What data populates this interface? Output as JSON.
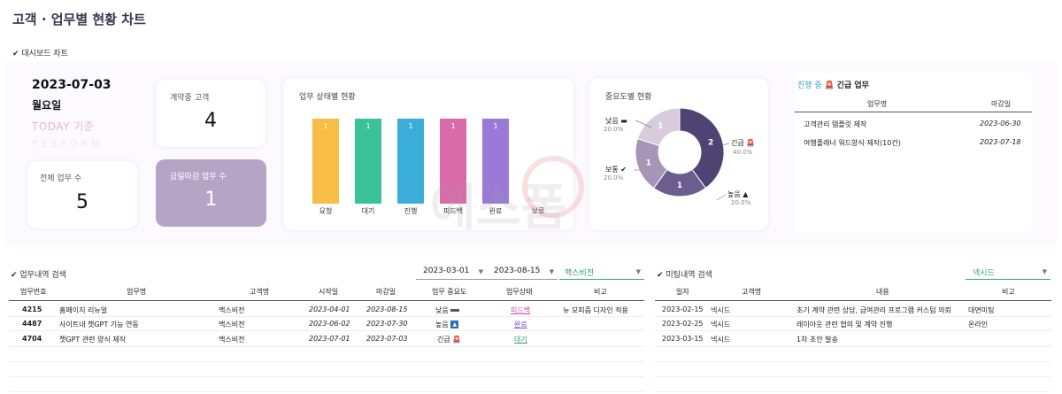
{
  "title": "고객 · 업무별 현황 차트",
  "dashboard_section": "✔ 대시보드 차트",
  "today": {
    "date": "2023-07-03",
    "weekday": "월요일",
    "label": "TODAY 기준",
    "brand": "YESFORM"
  },
  "cards": {
    "contract_customers": {
      "label": "계약중 고객",
      "value": "4"
    },
    "total_tasks": {
      "label": "전체 업무 수",
      "value": "5"
    },
    "urgent_tasks": {
      "label": "금일마감 업무 수",
      "value": "1"
    }
  },
  "status_chart": {
    "title": "업무 상태별 현황",
    "chart_data": {
      "type": "bar",
      "categories": [
        "요청",
        "대기",
        "진행",
        "피드백",
        "완료",
        "보류"
      ],
      "values": [
        1,
        1,
        1,
        1,
        1,
        0
      ],
      "colors": [
        "#f7bd45",
        "#39c19a",
        "#3aaed9",
        "#d96ba8",
        "#9a7ad6",
        "#cccccc"
      ],
      "ylim": [
        0,
        1
      ]
    }
  },
  "priority_chart": {
    "title": "중요도별 현황",
    "chart_data": {
      "type": "pie",
      "labels": [
        "긴급",
        "높음",
        "보통",
        "낮음"
      ],
      "values": [
        2,
        1,
        1,
        1
      ],
      "percents": [
        "40.0%",
        "20.0%",
        "20.0%",
        "20.0%"
      ],
      "colors": [
        "#4f4373",
        "#6b5e8e",
        "#a795b8",
        "#d7cbdd"
      ]
    }
  },
  "urgent_panel": {
    "title_prefix": "진행 중",
    "title_suffix": "긴급 업무",
    "headers": [
      "업무명",
      "마감일"
    ],
    "rows": [
      {
        "name": "고객관리 템플릿 제작",
        "due": "2023-06-30"
      },
      {
        "name": "여행플래너 워드양식 제작(10건)",
        "due": "2023-07-18"
      }
    ]
  },
  "task_search": {
    "section": "✔ 업무내역 검색",
    "start_date": "2023-03-01",
    "end_date": "2023-08-15",
    "customer": "맥스비전",
    "headers": [
      "업무번호",
      "업무명",
      "고객명",
      "시작일",
      "마감일",
      "업무 중요도",
      "업무상태",
      "비고"
    ],
    "rows": [
      {
        "no": "4215",
        "name": "홈페이지 리뉴얼",
        "customer": "맥스비전",
        "start": "2023-04-01",
        "due": "2023-08-15",
        "priority": "낮음",
        "status": "피드백",
        "note": "뉴 모피즘 디자인 적용"
      },
      {
        "no": "4487",
        "name": "사이트내 챗GPT 기능 연동",
        "customer": "맥스비전",
        "start": "2023-06-02",
        "due": "2023-07-30",
        "priority": "높음",
        "status": "완료",
        "note": ""
      },
      {
        "no": "4704",
        "name": "챗GPT 관련 양식 제작",
        "customer": "맥스비전",
        "start": "2023-07-01",
        "due": "2023-07-03",
        "priority": "긴급",
        "status": "대기",
        "note": ""
      }
    ]
  },
  "meeting_search": {
    "section": "✔ 미팅내역 검색",
    "customer": "넥시드",
    "headers": [
      "일자",
      "고객명",
      "내용",
      "비고"
    ],
    "rows": [
      {
        "date": "2023-02-15",
        "customer": "넥시드",
        "content": "초기 계약 관련 상담, 급여관리 프로그램 커스텀 의뢰",
        "note": "대면미팅"
      },
      {
        "date": "2023-02-25",
        "customer": "넥시드",
        "content": "레이아웃 관련 협의 및 계약 진행",
        "note": "온라인"
      },
      {
        "date": "2023-03-15",
        "customer": "넥시드",
        "content": "1차 초안 발송",
        "note": ""
      }
    ]
  },
  "watermark": "예스폼"
}
